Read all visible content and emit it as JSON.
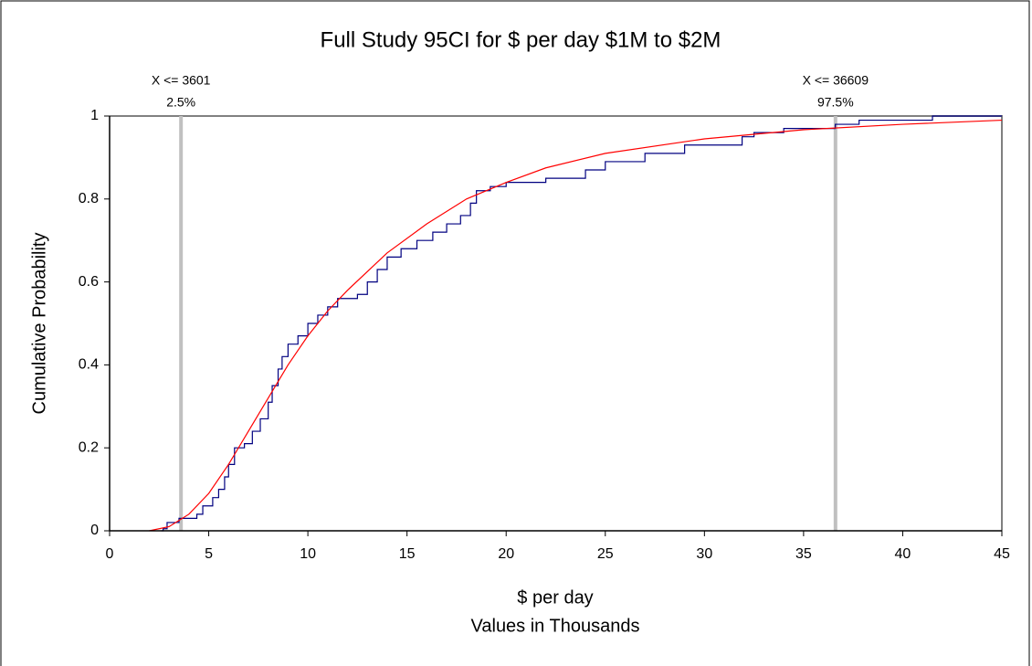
{
  "chart_data": {
    "type": "line",
    "title": "Full Study 95CI for $ per day $1M to $2M",
    "x_label": "$ per day",
    "x_sublabel": "Values in Thousands",
    "y_label": "Cumulative Probability",
    "xlim": [
      0,
      45
    ],
    "xticks": [
      0,
      5,
      10,
      15,
      20,
      25,
      30,
      35,
      40,
      45
    ],
    "ylim": [
      0,
      1
    ],
    "yticks": [
      0,
      0.2,
      0.4,
      0.6,
      0.8,
      1
    ],
    "annotations": [
      {
        "x": 3.601,
        "label": "X <= 3601",
        "percent": "2.5%",
        "color": "#c0c0c0"
      },
      {
        "x": 36.609,
        "label": "X <= 36609",
        "percent": "97.5%",
        "color": "#c0c0c0"
      }
    ],
    "series": [
      {
        "color": "#000080",
        "step": true,
        "x": [
          2.6,
          2.7,
          2.9,
          3.5,
          4.4,
          4.7,
          5.2,
          5.5,
          5.8,
          6.0,
          6.3,
          6.8,
          7.2,
          7.6,
          8.0,
          8.2,
          8.5,
          8.7,
          9.0,
          9.5,
          10.0,
          10.5,
          11.0,
          11.5,
          12.5,
          13.0,
          13.5,
          14.0,
          14.7,
          15.5,
          16.3,
          17.0,
          17.7,
          18.2,
          18.5,
          19.2,
          20.0,
          22.0,
          24.0,
          25.0,
          27.0,
          29.0,
          31.9,
          32.5,
          34.0,
          36.6,
          37.8,
          41.5,
          45
        ],
        "values": [
          0,
          0.005,
          0.02,
          0.03,
          0.04,
          0.06,
          0.08,
          0.1,
          0.13,
          0.16,
          0.2,
          0.21,
          0.24,
          0.27,
          0.31,
          0.35,
          0.39,
          0.42,
          0.45,
          0.47,
          0.5,
          0.52,
          0.54,
          0.56,
          0.57,
          0.6,
          0.63,
          0.66,
          0.68,
          0.7,
          0.72,
          0.74,
          0.76,
          0.79,
          0.82,
          0.83,
          0.84,
          0.85,
          0.87,
          0.89,
          0.91,
          0.93,
          0.95,
          0.96,
          0.97,
          0.98,
          0.99,
          1.0,
          1.0
        ]
      },
      {
        "color": "#ff0000",
        "step": false,
        "x": [
          2,
          3,
          4,
          5,
          6,
          7,
          8,
          9,
          10,
          11,
          12,
          14,
          16,
          18,
          20,
          22,
          25,
          30,
          35,
          40,
          45
        ],
        "values": [
          0,
          0.01,
          0.04,
          0.09,
          0.16,
          0.24,
          0.32,
          0.4,
          0.47,
          0.53,
          0.58,
          0.67,
          0.74,
          0.8,
          0.84,
          0.875,
          0.91,
          0.945,
          0.967,
          0.98,
          0.99
        ]
      }
    ]
  }
}
